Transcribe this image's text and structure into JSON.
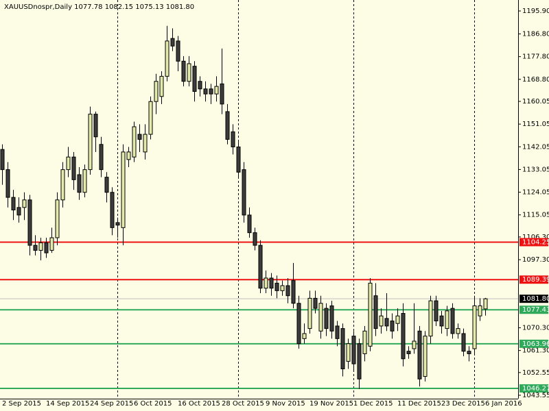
{
  "chart_data": {
    "type": "candlestick",
    "title": "XAUUSDnospr,Daily  1077.78 1082.15 1075.13 1081.80",
    "categories": [
      "2 Sep 2015",
      null,
      null,
      null,
      null,
      null,
      null,
      null,
      "14 Sep 2015",
      null,
      null,
      null,
      null,
      null,
      null,
      null,
      "24 Sep 2015",
      null,
      null,
      null,
      null,
      null,
      null,
      null,
      "6 Oct 2015",
      null,
      null,
      null,
      null,
      null,
      null,
      null,
      "16 Oct 2015",
      null,
      null,
      null,
      null,
      null,
      null,
      null,
      "28 Oct 2015",
      null,
      null,
      null,
      null,
      null,
      null,
      null,
      "9 Nov 2015",
      null,
      null,
      null,
      null,
      null,
      null,
      null,
      "19 Nov 2015",
      null,
      null,
      null,
      null,
      null,
      null,
      null,
      "1 Dec 2015",
      null,
      null,
      null,
      null,
      null,
      null,
      null,
      "11 Dec 2015",
      null,
      null,
      null,
      null,
      null,
      null,
      null,
      "23 Dec 2015",
      null,
      null,
      null,
      null,
      null,
      null,
      null,
      "6 Jan 2016"
    ],
    "open": [
      1141,
      1133,
      1122,
      1118,
      1118,
      1121,
      1103,
      1101,
      1104,
      1101,
      1106,
      1121,
      1133,
      1138,
      1131,
      1124,
      1133,
      1155,
      1143,
      1130,
      1124,
      1112,
      1110,
      1137,
      1138,
      1147,
      1140,
      1147,
      1160,
      1162,
      1170,
      1185,
      1184,
      1176,
      1168,
      1174,
      1168,
      1165,
      1165,
      1163,
      1167,
      1156,
      1148,
      1142,
      1133,
      1115,
      1108,
      1103,
      1086,
      1090,
      1088,
      1085,
      1087,
      1089,
      1080,
      1066,
      1070,
      1082,
      1069,
      1078,
      1079,
      1071,
      1070,
      1057,
      1067,
      1064,
      1060,
      1063,
      1083,
      1071,
      1074,
      1073,
      1072,
      1076,
      1061,
      1062,
      1069,
      1051,
      1067,
      1081,
      1075,
      1070,
      1078,
      1068,
      1068,
      1061,
      1062,
      1075,
      1077.78
    ],
    "high": [
      1143,
      1136,
      1125,
      1122,
      1124,
      1123,
      1107,
      1106,
      1106,
      1110,
      1124,
      1136,
      1142,
      1140,
      1134,
      1135,
      1158,
      1156,
      1146,
      1132,
      1126,
      1114,
      1143,
      1142,
      1152,
      1151,
      1151,
      1162,
      1171,
      1172,
      1190,
      1189,
      1186,
      1178,
      1178,
      1176,
      1170,
      1168,
      1167,
      1170,
      1181,
      1159,
      1151,
      1144,
      1136,
      1118,
      1110,
      1105,
      1093,
      1092,
      1091,
      1089,
      1090,
      1096,
      1083,
      1072,
      1085,
      1085,
      1083,
      1080,
      1081,
      1073,
      1072,
      1066,
      1069,
      1066,
      1071,
      1090,
      1088,
      1078,
      1084,
      1076,
      1078,
      1080,
      1063,
      1080,
      1071,
      1069,
      1083,
      1083,
      1077,
      1079,
      1080,
      1072,
      1070,
      1063,
      1083,
      1082,
      1082.15
    ],
    "low": [
      1127,
      1118,
      1113,
      1112,
      1113,
      1099,
      1099,
      1097,
      1098,
      1100,
      1103,
      1118,
      1130,
      1125,
      1121,
      1122,
      1131,
      1140,
      1130,
      1120,
      1107,
      1106,
      1103,
      1134,
      1136,
      1140,
      1137,
      1145,
      1155,
      1159,
      1168,
      1180,
      1172,
      1166,
      1166,
      1160,
      1162,
      1160,
      1159,
      1160,
      1155,
      1143,
      1139,
      1130,
      1112,
      1106,
      1101,
      1084,
      1084,
      1083,
      1082,
      1083,
      1080,
      1078,
      1062,
      1064,
      1068,
      1076,
      1066,
      1067,
      1066,
      1063,
      1051,
      1054,
      1053,
      1046,
      1057,
      1061,
      1067,
      1068,
      1069,
      1066,
      1069,
      1055,
      1058,
      1060,
      1047,
      1049,
      1064,
      1071,
      1068,
      1067,
      1066,
      1066,
      1059,
      1057,
      1060,
      1073,
      1075.13
    ],
    "close": [
      1133,
      1122,
      1117,
      1115,
      1121,
      1103,
      1101,
      1104,
      1100,
      1106,
      1121,
      1133,
      1138,
      1129,
      1124,
      1133,
      1155,
      1146,
      1133,
      1124,
      1110,
      1111,
      1140,
      1140,
      1150,
      1145,
      1147,
      1160,
      1168,
      1170,
      1184,
      1182,
      1176,
      1168,
      1175,
      1164,
      1165,
      1163,
      1163,
      1166,
      1159,
      1145,
      1142,
      1132,
      1115,
      1108,
      1103,
      1086,
      1090,
      1086,
      1085,
      1087,
      1083,
      1080,
      1064,
      1068,
      1082,
      1078,
      1080,
      1070,
      1069,
      1066,
      1054,
      1064,
      1056,
      1050,
      1069,
      1088,
      1070,
      1075,
      1071,
      1069,
      1075,
      1058,
      1060,
      1065,
      1050,
      1067,
      1081,
      1073,
      1071,
      1077,
      1068,
      1070,
      1061,
      1060,
      1079,
      1079,
      1081.8
    ],
    "up_color": "#e4e9ac",
    "down_color": "#3c3c3c",
    "ylim": [
      1042.19,
      1200.25
    ],
    "yticks": [
      {
        "value": 1195.9,
        "label": "1195.90"
      },
      {
        "value": 1186.8,
        "label": "1186.80"
      },
      {
        "value": 1177.8,
        "label": "1177.80"
      },
      {
        "value": 1168.8,
        "label": "1168.80"
      },
      1160.05,
      1151.05,
      1142.05,
      1133.05,
      1124.05,
      1115.05,
      {
        "value": 1106.3,
        "label": "1106.30"
      },
      {
        "value": 1097.3,
        "label": "1097.30"
      },
      {
        "value": 1070.3,
        "label": "1070.30"
      },
      {
        "value": 1061.3,
        "label": "1061.30"
      },
      1052.55,
      1043.55
    ],
    "hlines": [
      {
        "value": 1104.25,
        "color": "#ee1111"
      },
      {
        "value": 1089.39,
        "color": "#ee1111"
      },
      {
        "value": 1077.43,
        "color": "#2eaa5a"
      },
      {
        "value": 1063.96,
        "color": "#2eaa5a"
      },
      {
        "value": 1046.27,
        "color": "#2eaa5a"
      }
    ],
    "current_price": {
      "value": 1081.8,
      "label": "1081.80"
    }
  }
}
